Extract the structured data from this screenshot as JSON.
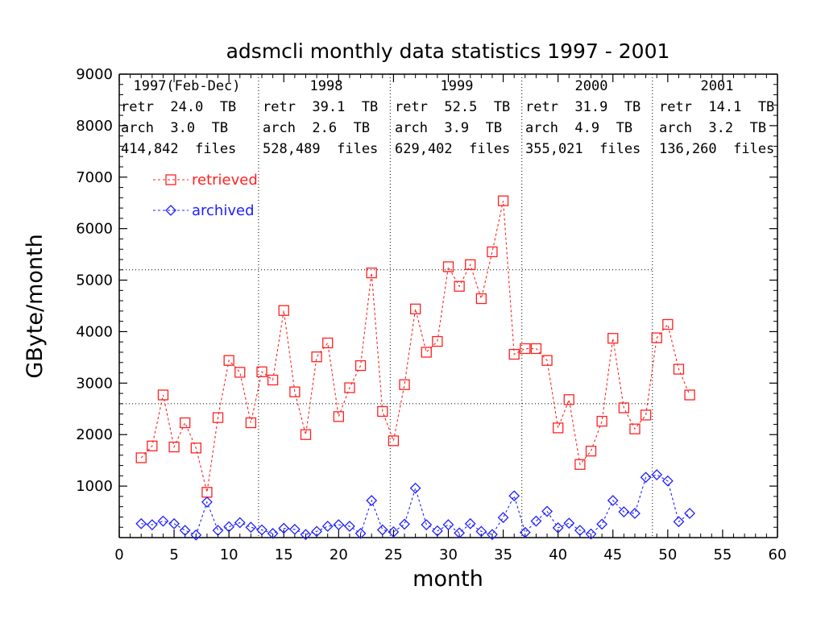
{
  "chart_data": {
    "type": "line",
    "title": "adsmcli monthly data statistics 1997 - 2001",
    "xlabel": "month",
    "ylabel": "GByte/month",
    "xlim": [
      0,
      60
    ],
    "ylim": [
      0,
      9000
    ],
    "x_ticks": [
      "0",
      "5",
      "10",
      "15",
      "20",
      "25",
      "30",
      "35",
      "40",
      "45",
      "50",
      "55",
      "60"
    ],
    "y_ticks": [
      "1000",
      "2000",
      "3000",
      "4000",
      "5000",
      "6000",
      "7000",
      "8000",
      "9000"
    ],
    "legend_position": "upper-left",
    "year_boundaries": [
      12.7,
      24.7,
      36.7,
      48.6
    ],
    "reference_lines": [
      5200,
      2600
    ],
    "year_stats": [
      {
        "year": "1997(Feb-Dec)",
        "retr": "retr  24.0  TB",
        "arch": "arch  3.0  TB",
        "files": "414,842  files"
      },
      {
        "year": "1998",
        "retr": "retr  39.1  TB",
        "arch": "arch  2.6  TB",
        "files": "528,489  files"
      },
      {
        "year": "1999",
        "retr": "retr  52.5  TB",
        "arch": "arch  3.9  TB",
        "files": "629,402  files"
      },
      {
        "year": "2000",
        "retr": "retr  31.9  TB",
        "arch": "arch  4.9  TB",
        "files": "355,021  files"
      },
      {
        "year": "2001",
        "retr": "retr  14.1  TB",
        "arch": "arch  3.2  TB",
        "files": "136,260  files"
      }
    ],
    "series": [
      {
        "name": "retrieved",
        "color": "#ff2020",
        "marker": "square",
        "x": [
          2,
          3,
          4,
          5,
          6,
          7,
          8,
          9,
          10,
          11,
          12,
          13,
          14,
          15,
          16,
          17,
          18,
          19,
          20,
          21,
          22,
          23,
          24,
          25,
          26,
          27,
          28,
          29,
          30,
          31,
          32,
          33,
          34,
          35,
          36,
          37,
          38,
          39,
          40,
          41,
          42,
          43,
          44,
          45,
          46,
          47,
          48,
          49,
          50,
          51,
          52
        ],
        "values": [
          1550,
          1780,
          2770,
          1760,
          2230,
          1740,
          880,
          2330,
          3440,
          3210,
          2230,
          3220,
          3060,
          4410,
          2830,
          2000,
          3510,
          3780,
          2350,
          2910,
          3340,
          5140,
          2450,
          1880,
          2970,
          4440,
          3600,
          3810,
          5260,
          4880,
          5300,
          4640,
          5550,
          6540,
          3560,
          3670,
          3670,
          3440,
          2130,
          2680,
          1420,
          1680,
          2260,
          3870,
          2520,
          2110,
          2380,
          3880,
          4140,
          3270,
          2770
        ]
      },
      {
        "name": "archived",
        "color": "#2020ff",
        "marker": "diamond",
        "x": [
          2,
          3,
          4,
          5,
          6,
          7,
          8,
          9,
          10,
          11,
          12,
          13,
          14,
          15,
          16,
          17,
          18,
          19,
          20,
          21,
          22,
          23,
          24,
          25,
          26,
          27,
          28,
          29,
          30,
          31,
          32,
          33,
          34,
          35,
          36,
          37,
          38,
          39,
          40,
          41,
          42,
          43,
          44,
          45,
          46,
          47,
          48,
          49,
          50,
          51,
          52
        ],
        "values": [
          270,
          250,
          320,
          270,
          140,
          50,
          690,
          140,
          210,
          290,
          200,
          150,
          80,
          180,
          160,
          60,
          120,
          220,
          250,
          220,
          80,
          720,
          150,
          110,
          260,
          960,
          250,
          130,
          250,
          90,
          270,
          120,
          60,
          390,
          810,
          100,
          320,
          510,
          190,
          280,
          140,
          70,
          260,
          720,
          500,
          470,
          1170,
          1220,
          1100,
          310,
          470
        ]
      }
    ]
  }
}
